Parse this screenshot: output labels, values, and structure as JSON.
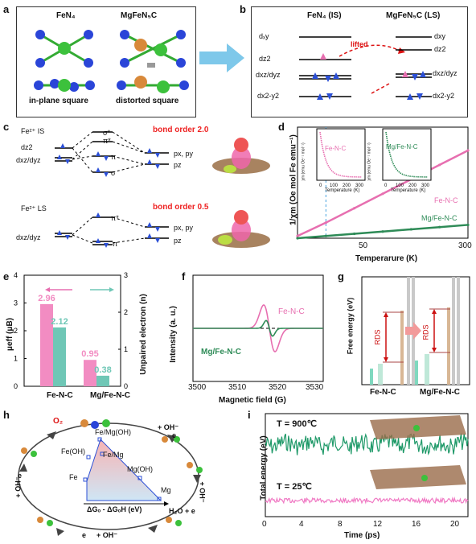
{
  "panels": {
    "a": {
      "label": "a",
      "left_title": "FeN₄",
      "right_title": "MgFeN₅C",
      "left_caption": "in-plane square",
      "right_caption": "distorted square"
    },
    "b": {
      "label": "b",
      "left_title": "FeN₄ (IS)",
      "right_title": "MgFeN₅C (LS)",
      "lifted": "lifted",
      "left_levels": [
        "dₓy",
        "dz2",
        "dxz/dyz",
        "dx2-y2"
      ],
      "right_levels": [
        "dxy",
        "dz2",
        "dxz/dyz",
        "dx2-y2"
      ]
    },
    "c": {
      "label": "c",
      "is_title": "Fe²⁺ IS",
      "ls_title": "Fe²⁺ LS",
      "bond_order_is": "bond order 2.0",
      "bond_order_ls": "bond order 0.5",
      "sigma_star": "σ*",
      "pi_star": "π*",
      "pi": "π",
      "sigma": "σ",
      "dz2": "dz2",
      "dxz_dyz": "dxz/dyz",
      "px_py": "px, py",
      "pz": "pz"
    },
    "d": {
      "label": "d",
      "ylabel": "1/χm (Oe mol Fe emu⁻¹)",
      "xlabel": "Temperarure (K)",
      "x_ticks": [
        "50",
        "300"
      ],
      "series1": "Fe-N-C",
      "series2": "Mg/Fe-N-C",
      "inset1_label": "Fe-N-C",
      "inset2_label": "Mg/Fe-N-C",
      "inset_xlabel": "Temperature (K)",
      "inset_ylabel": "χm (emu Oe⁻¹ mol⁻¹)",
      "inset_ticks": [
        "0",
        "100",
        "200",
        "300"
      ]
    },
    "e": {
      "label": "e",
      "ylabel_left": "μeff (μB)",
      "ylabel_right": "Unpaired electron (n)",
      "y_left_ticks": [
        "0",
        "1",
        "2",
        "3",
        "4"
      ],
      "y_right_ticks": [
        "0",
        "1",
        "2",
        "3"
      ],
      "categories": [
        "Fe-N-C",
        "Mg/Fe-N-C"
      ]
    },
    "f": {
      "label": "f",
      "ylabel": "Intensity (a. u.)",
      "xlabel": "Magnetic field (G)",
      "x_ticks": [
        "3500",
        "3510",
        "3520",
        "3530"
      ],
      "series1": "Fe-N-C",
      "series2": "Mg/Fe-N-C"
    },
    "g": {
      "label": "g",
      "ylabel": "Free energy (eV)",
      "categories": [
        "Fe-N-C",
        "Mg/Fe-N-C"
      ],
      "rds": "RDS"
    },
    "h": {
      "label": "h",
      "axis_label": "ΔGₒ - ΔGₒH (eV)",
      "points": [
        "Fe/Mg(OH)",
        "Fe(OH)",
        "Fe/Mg",
        "Mg(OH)",
        "Fe",
        "Mg"
      ],
      "cycle": [
        "O₂",
        "+ OH⁻",
        "e",
        "+ OH⁻",
        "H₂O + e",
        "+ OH⁻",
        "e",
        "+ OH⁻",
        "e"
      ]
    },
    "i": {
      "label": "i",
      "ylabel": "Total energy (eV)",
      "xlabel": "Time  (ps)",
      "x_ticks": [
        "0",
        "4",
        "8",
        "12",
        "16",
        "20"
      ],
      "t_high": "T = 900℃",
      "t_low": "T = 25℃"
    }
  },
  "chart_data": [
    {
      "type": "line",
      "panel": "d",
      "xlabel": "Temperarure (K)",
      "ylabel": "1/χm (Oe mol Fe emu⁻¹)",
      "xlim": [
        0,
        300
      ],
      "vline_x": 50,
      "series": [
        {
          "name": "Fe-N-C",
          "color": "#e76fb0",
          "x": [
            0,
            50,
            100,
            150,
            200,
            250,
            300
          ],
          "y": [
            0.02,
            0.14,
            0.27,
            0.4,
            0.53,
            0.66,
            0.79
          ]
        },
        {
          "name": "Mg/Fe-N-C",
          "color": "#2e8b57",
          "x": [
            0,
            50,
            100,
            150,
            200,
            250,
            300
          ],
          "y": [
            0.0,
            0.02,
            0.04,
            0.06,
            0.08,
            0.1,
            0.12
          ]
        }
      ]
    },
    {
      "type": "bar",
      "panel": "e",
      "categories": [
        "Fe-N-C",
        "Mg/Fe-N-C"
      ],
      "ylim": [
        0,
        4
      ],
      "series": [
        {
          "name": "μeff",
          "color": "#f28cc2",
          "values": [
            2.96,
            0.95
          ]
        },
        {
          "name": "Unpaired electron",
          "color": "#6fc7b6",
          "values": [
            2.12,
            0.38
          ]
        }
      ]
    },
    {
      "type": "line",
      "panel": "f",
      "xlim": [
        3500,
        3530
      ],
      "series": [
        {
          "name": "Fe-N-C",
          "color": "#e76fb0"
        },
        {
          "name": "Mg/Fe-N-C",
          "color": "#2e8b57"
        }
      ]
    },
    {
      "type": "line",
      "panel": "i",
      "xlim": [
        0,
        20
      ],
      "series": [
        {
          "name": "T = 900℃",
          "color": "#1e9968"
        },
        {
          "name": "T = 25℃",
          "color": "#f07ac4"
        }
      ]
    }
  ],
  "colors": {
    "pink": "#e76fb0",
    "teal": "#6fc7b6",
    "green": "#2e8b57",
    "blue": "#2b4fd6",
    "red": "#d11"
  }
}
